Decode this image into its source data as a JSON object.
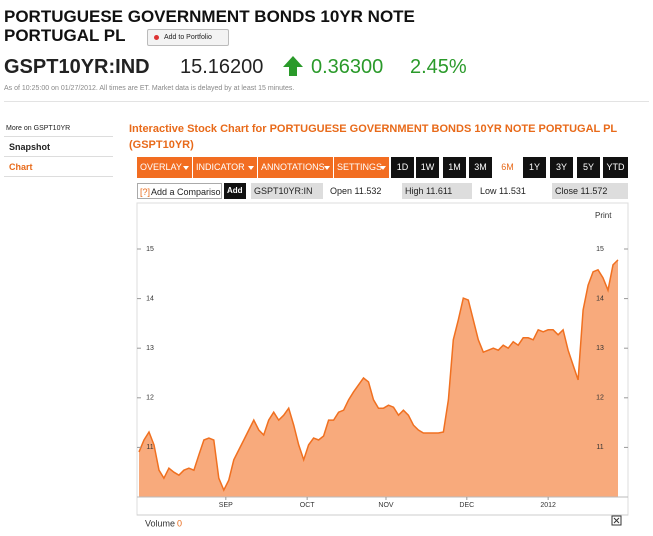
{
  "header": {
    "title": "PORTUGUESE GOVERNMENT BONDS 10YR NOTE PORTUGAL PL",
    "add_button": "Add to Portfolio"
  },
  "quote": {
    "symbol": "GSPT10YR:IND",
    "price": "15.16200",
    "change": "0.36300",
    "change_pct": "2.45%",
    "timestamp": "As of 10:25:00 on 01/27/2012. All times are ET. Market data is delayed by at least 15 minutes."
  },
  "sidebar": {
    "heading": "More on GSPT10YR",
    "links": [
      "Snapshot",
      "Chart"
    ]
  },
  "chart_section": {
    "title": "Interactive Stock Chart for PORTUGUESE GOVERNMENT BONDS 10YR NOTE PORTUGAL PL (GSPT10YR)",
    "menus": [
      "OVERLAY",
      "INDICATOR",
      "ANNOTATIONS",
      "SETTINGS"
    ],
    "ranges": [
      "1D",
      "1W",
      "1M",
      "3M",
      "6M",
      "1Y",
      "3Y",
      "5Y",
      "YTD"
    ],
    "active_range": "6M",
    "help": "[?]",
    "compare_placeholder": "Add a Compariso",
    "add": "Add",
    "symbol": "GSPT10YR:IN",
    "stats": [
      {
        "label": "Open",
        "value": "11.532"
      },
      {
        "label": "High",
        "value": "11.611"
      },
      {
        "label": "Low",
        "value": "11.531"
      },
      {
        "label": "Close",
        "value": "11.572"
      }
    ],
    "print": "Print",
    "volume_label": "Volume",
    "volume_value": "0"
  },
  "chart_data": {
    "type": "area",
    "color": "#f07020",
    "fill": "#f8aa7c",
    "values": [
      10.91,
      11.15,
      11.31,
      11.05,
      10.54,
      10.38,
      10.58,
      10.5,
      10.44,
      10.54,
      10.58,
      10.54,
      10.85,
      11.15,
      11.19,
      11.15,
      10.38,
      10.14,
      10.34,
      10.75,
      10.95,
      11.15,
      11.35,
      11.55,
      11.35,
      11.25,
      11.55,
      11.71,
      11.55,
      11.65,
      11.79,
      11.45,
      11.05,
      10.75,
      11.05,
      11.19,
      11.15,
      11.23,
      11.55,
      11.55,
      11.71,
      11.75,
      11.96,
      12.12,
      12.26,
      12.4,
      12.32,
      11.96,
      11.79,
      11.79,
      11.85,
      11.81,
      11.65,
      11.75,
      11.65,
      11.45,
      11.35,
      11.29,
      11.29,
      11.29,
      11.29,
      11.31,
      11.96,
      13.17,
      13.57,
      14.01,
      13.97,
      13.57,
      13.17,
      12.92,
      12.96,
      13.0,
      12.96,
      13.06,
      13.0,
      13.13,
      13.06,
      13.21,
      13.21,
      13.17,
      13.37,
      13.33,
      13.37,
      13.37,
      13.27,
      13.37,
      12.96,
      12.66,
      12.36,
      13.77,
      14.27,
      14.54,
      14.58,
      14.42,
      14.17,
      14.68,
      14.78
    ],
    "xlim": [
      0,
      96
    ],
    "xticks": [
      {
        "value": 17.4,
        "label": "SEP"
      },
      {
        "value": 33.7,
        "label": "OCT"
      },
      {
        "value": 49.5,
        "label": "NOV"
      },
      {
        "value": 65.7,
        "label": "DEC"
      },
      {
        "value": 82,
        "label": "2012"
      }
    ],
    "ylim": [
      10,
      15.5
    ],
    "yticks": [
      11,
      12,
      13,
      14,
      15
    ]
  }
}
